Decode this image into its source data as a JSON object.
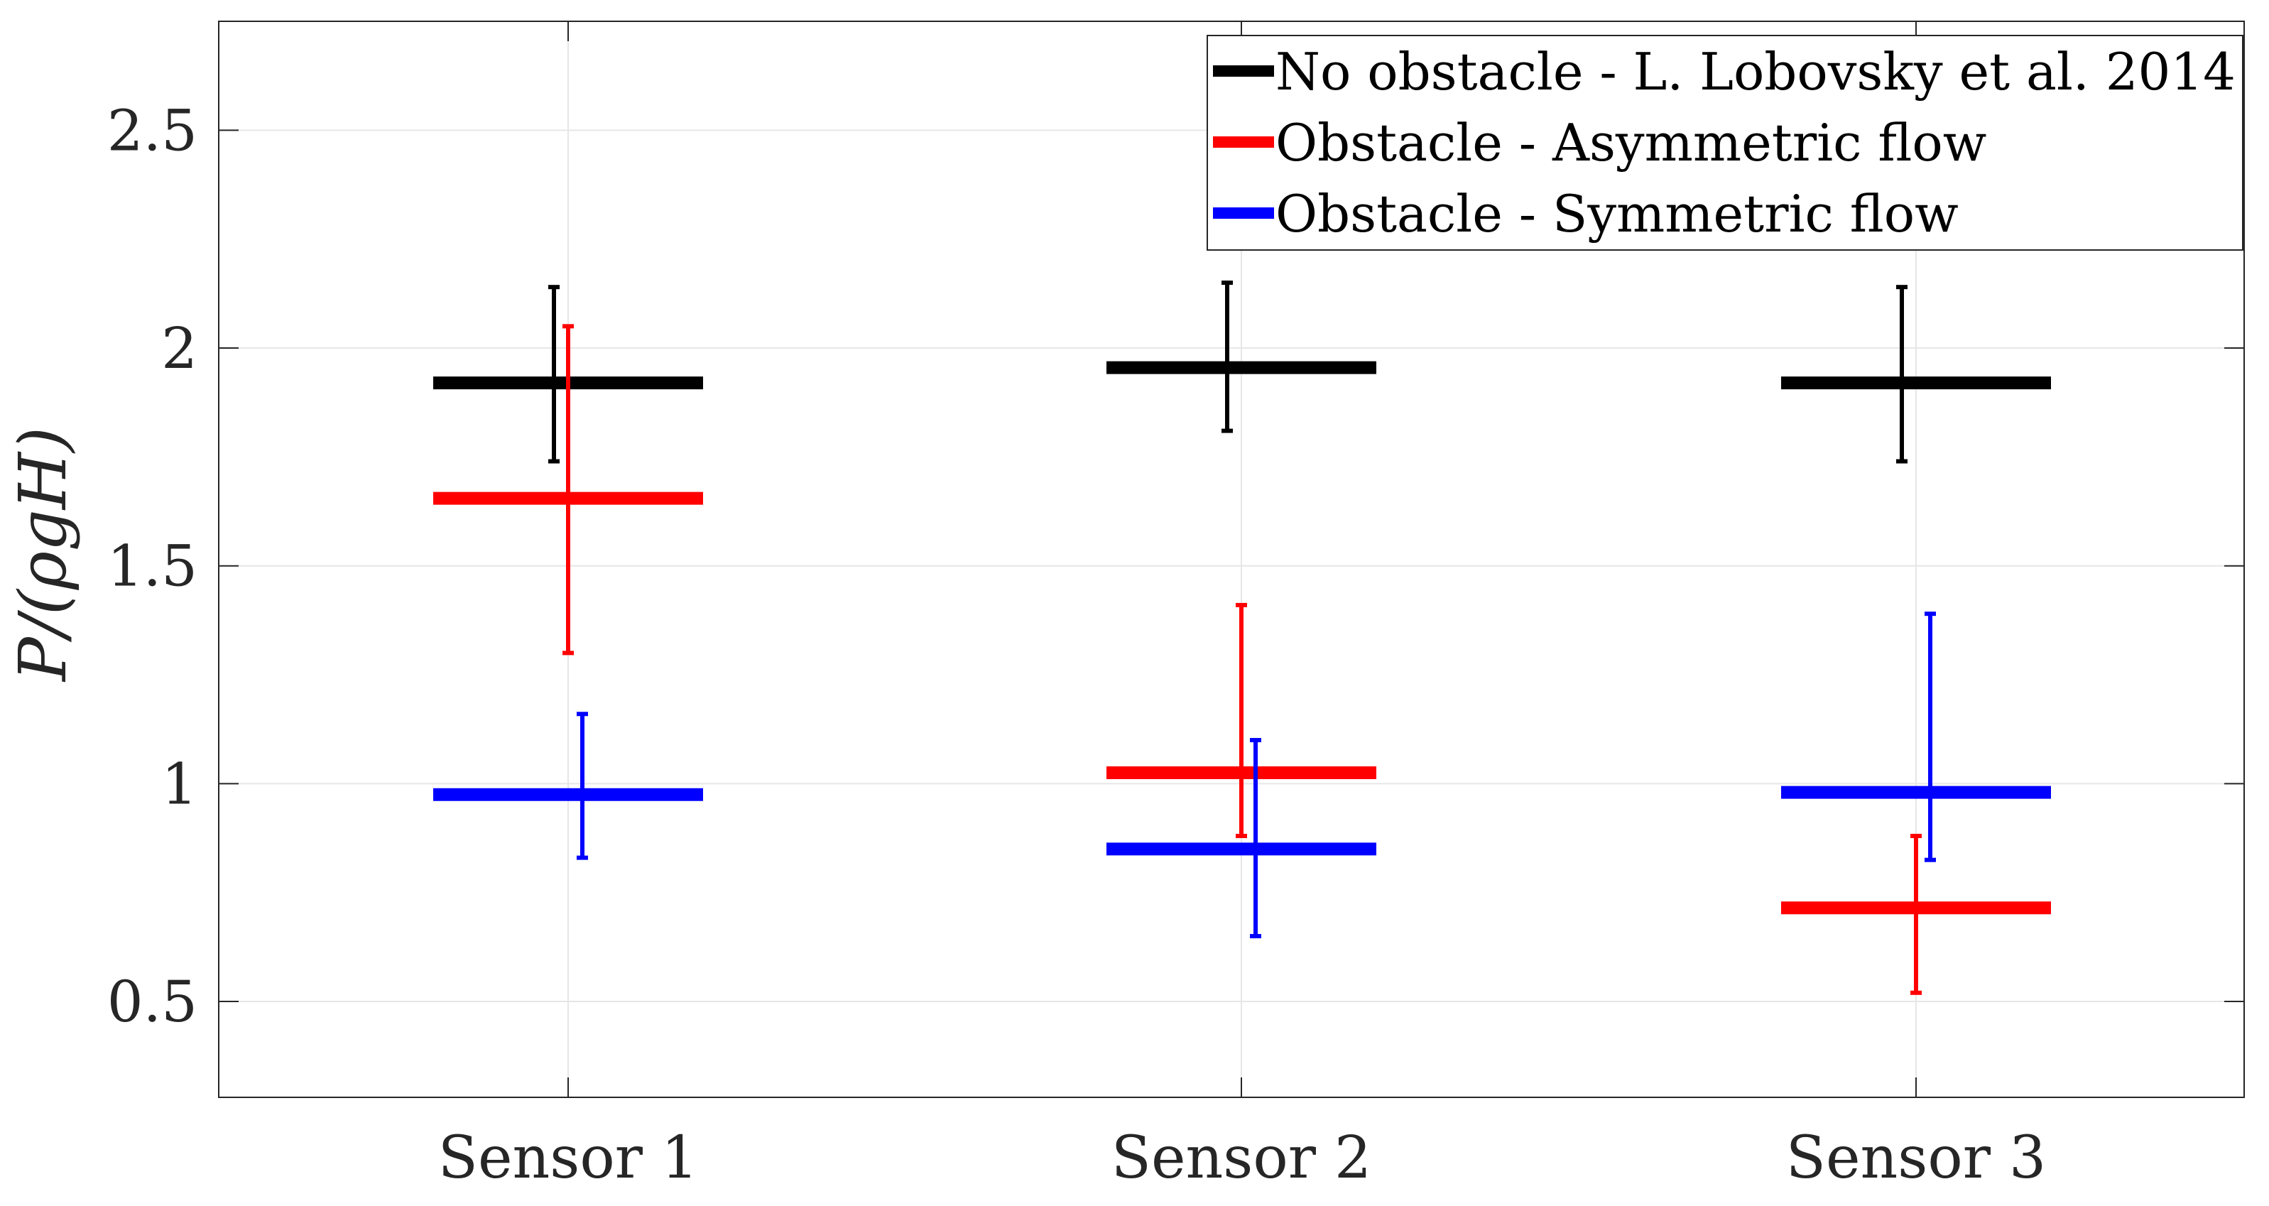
{
  "chart_data": {
    "type": "errorbar",
    "categories": [
      "Sensor 1",
      "Sensor 2",
      "Sensor 3"
    ],
    "ylabel": "P/(ρgH)",
    "ylim": [
      0.28,
      2.75
    ],
    "yticks": [
      0.5,
      1,
      1.5,
      2,
      2.5
    ],
    "ytick_labels": [
      "0.5",
      "1",
      "1.5",
      "2",
      "2.5"
    ],
    "grid": true,
    "legend_position": "top-right",
    "series": [
      {
        "name": "No obstacle - L. Lobovsky et al. 2014",
        "color": "#000000",
        "values": [
          1.92,
          1.955,
          1.92
        ],
        "lower": [
          1.74,
          1.81,
          1.74
        ],
        "upper": [
          2.14,
          2.15,
          2.14
        ]
      },
      {
        "name": "Obstacle - Asymmetric flow",
        "color": "#ff0000",
        "values": [
          1.655,
          1.025,
          0.715
        ],
        "lower": [
          1.3,
          0.88,
          0.52
        ],
        "upper": [
          2.05,
          1.41,
          0.88
        ]
      },
      {
        "name": "Obstacle - Symmetric flow",
        "color": "#0000ff",
        "values": [
          0.975,
          0.85,
          0.98
        ],
        "lower": [
          0.83,
          0.65,
          0.825
        ],
        "upper": [
          1.16,
          1.1,
          1.39
        ]
      }
    ]
  }
}
